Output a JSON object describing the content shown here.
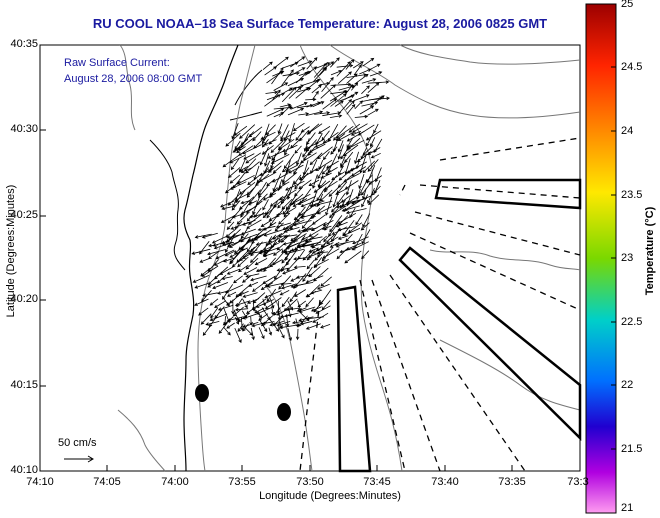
{
  "title": "RU COOL  NOAA–18  Sea Surface Temperature:  August 28, 2006 0825 GMT",
  "subtitle_lines": [
    "Raw Surface Current:",
    "August 28, 2006 08:00 GMT"
  ],
  "axes": {
    "xlabel": "Longitude (Degrees:Minutes)",
    "ylabel": "Latitude (Degrees:Minutes)",
    "xticks": [
      "74:10",
      "74:05",
      "74:00",
      "73:55",
      "73:50",
      "73:45",
      "73:40",
      "73:35",
      "73:3"
    ],
    "yticks": [
      "40:35",
      "40:30",
      "40:25",
      "40:20",
      "40:15",
      "40:10"
    ]
  },
  "colorbar": {
    "label": "Temperature (°C)",
    "ticks": [
      "25",
      "24.5",
      "24",
      "23.5",
      "23",
      "22.5",
      "22",
      "21.5",
      "21"
    ],
    "min": 21,
    "max": 25
  },
  "scale": {
    "label": "50 cm/s"
  }
}
